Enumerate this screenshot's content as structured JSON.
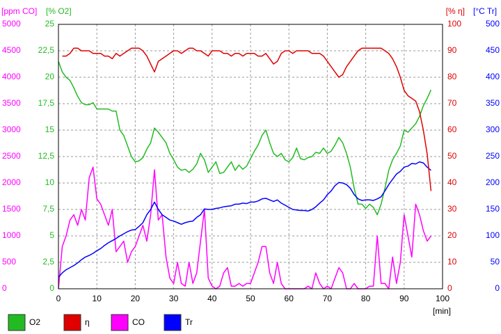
{
  "chart_data": {
    "type": "line",
    "xlabel": "[min]",
    "ylabel": "[ppm CO]",
    "y2label": "[% O2]",
    "y3label": "[% η]",
    "y4label": "[°C Tr]",
    "grid": true,
    "legend": "bottom",
    "xlim": [
      0,
      100
    ],
    "xticks": [
      0,
      10,
      20,
      30,
      40,
      50,
      60,
      70,
      80,
      90,
      100
    ],
    "ylim": [
      0,
      5000
    ],
    "yticks": [
      0,
      500,
      1000,
      1500,
      2000,
      2500,
      3000,
      3500,
      4000,
      4500,
      5000
    ],
    "y2lim": [
      0,
      25
    ],
    "y2ticks": [
      0,
      {
        "value": 2.5,
        "label": "2,5"
      },
      5,
      {
        "value": 7.5,
        "label": "7,5"
      },
      10,
      {
        "value": 12.5,
        "label": "12,5"
      },
      15,
      {
        "value": 17.5,
        "label": "17,5"
      },
      20,
      {
        "value": 22.5,
        "label": "22,5"
      },
      25
    ],
    "y3lim": [
      0,
      100
    ],
    "y3ticks": [
      0,
      10,
      20,
      30,
      40,
      50,
      60,
      70,
      80,
      90,
      100
    ],
    "y4lim": [
      0,
      500
    ],
    "y4ticks": [
      0,
      50,
      100,
      150,
      200,
      250,
      300,
      350,
      400,
      450,
      500
    ],
    "x": [
      0,
      1,
      2,
      3,
      4,
      5,
      6,
      7,
      8,
      9,
      10,
      11,
      12,
      13,
      14,
      15,
      16,
      17,
      18,
      19,
      20,
      21,
      22,
      23,
      24,
      25,
      26,
      27,
      28,
      29,
      30,
      31,
      32,
      33,
      34,
      35,
      36,
      37,
      38,
      39,
      40,
      41,
      42,
      43,
      44,
      45,
      46,
      47,
      48,
      49,
      50,
      51,
      52,
      53,
      54,
      55,
      56,
      57,
      58,
      59,
      60,
      61,
      62,
      63,
      64,
      65,
      66,
      67,
      68,
      69,
      70,
      71,
      72,
      73,
      74,
      75,
      76,
      77,
      78,
      79,
      80,
      81,
      82,
      83,
      84,
      85,
      86,
      87,
      88,
      89,
      90,
      91,
      92,
      93,
      94,
      95,
      96,
      97
    ],
    "series": [
      {
        "name": "O2",
        "color": "#22bb22",
        "axis": "y2",
        "values": [
          21.5,
          20.5,
          20,
          19.7,
          19,
          18.2,
          17.6,
          17.4,
          17.4,
          17.6,
          17,
          17,
          17,
          17,
          16.8,
          16.8,
          15,
          14.5,
          13.5,
          12.5,
          12,
          12.1,
          12.4,
          13.2,
          13.8,
          15.2,
          14.8,
          14.3,
          13.8,
          12.8,
          12.2,
          11.5,
          11.2,
          11.3,
          11,
          11.3,
          11.8,
          12.8,
          12.2,
          11,
          11.5,
          12,
          10.9,
          11,
          11.5,
          12,
          11.2,
          11.7,
          11.3,
          11.6,
          12.3,
          13,
          13.6,
          14.5,
          15,
          13.8,
          12.8,
          12.5,
          12.8,
          12.2,
          12,
          12.4,
          13.3,
          12.3,
          12.2,
          12.4,
          12.5,
          12.9,
          12.8,
          13.3,
          12.8,
          13,
          13.6,
          14.3,
          13.8,
          12.8,
          11.5,
          9.5,
          8,
          8,
          7.6,
          8,
          7.7,
          7,
          8,
          9.5,
          11.2,
          12.2,
          12.8,
          13.5,
          15,
          14.8,
          15.2,
          15.6,
          16.3,
          17.3,
          18,
          18.8
        ]
      },
      {
        "name": "η",
        "color": "#e00000",
        "axis": "y3",
        "values": [
          null,
          88,
          88,
          89,
          91,
          91,
          90,
          90,
          90,
          89,
          89,
          89,
          88,
          88,
          87,
          89,
          88,
          89,
          90,
          91,
          91,
          91,
          90,
          88,
          85,
          82,
          86,
          87,
          88,
          89,
          90,
          90,
          89,
          90,
          91,
          91,
          90,
          90,
          89,
          88,
          90,
          90,
          90,
          89,
          89,
          88,
          89,
          89,
          88,
          89,
          89,
          89,
          88,
          88,
          89,
          87,
          85,
          86,
          89,
          90,
          90,
          89,
          90,
          90,
          90,
          90,
          89,
          89,
          89,
          88,
          86,
          84,
          82,
          80,
          81,
          84,
          86,
          88,
          90,
          91,
          91,
          91,
          91,
          91,
          91,
          90,
          89,
          87,
          84,
          80,
          75,
          73,
          72,
          71,
          67,
          60,
          51,
          37
        ]
      },
      {
        "name": "CO",
        "color": "#ff00ff",
        "axis": "y",
        "values": [
          0,
          800,
          1000,
          1300,
          1400,
          1200,
          1500,
          1300,
          2100,
          2300,
          1700,
          1600,
          1400,
          1200,
          1500,
          700,
          800,
          900,
          500,
          700,
          800,
          1000,
          1200,
          900,
          1400,
          2250,
          1300,
          1400,
          600,
          200,
          100,
          500,
          100,
          50,
          500,
          100,
          300,
          900,
          1500,
          200,
          50,
          0,
          50,
          300,
          400,
          50,
          50,
          100,
          50,
          100,
          100,
          300,
          500,
          800,
          800,
          300,
          100,
          500,
          100,
          0,
          0,
          0,
          0,
          0,
          0,
          50,
          0,
          300,
          100,
          0,
          50,
          0,
          200,
          400,
          300,
          0,
          0,
          100,
          0,
          0,
          0,
          50,
          50,
          1000,
          100,
          100,
          0,
          600,
          100,
          500,
          1400,
          1000,
          600,
          1600,
          1400,
          1100,
          900,
          1000
        ]
      },
      {
        "name": "Tr",
        "color": "#0000ff",
        "axis": "y4",
        "values": [
          22,
          30,
          36,
          40,
          44,
          49,
          55,
          60,
          63,
          67,
          72,
          76,
          82,
          87,
          91,
          95,
          100,
          104,
          108,
          111,
          112,
          118,
          125,
          140,
          150,
          164,
          150,
          140,
          135,
          130,
          128,
          125,
          122,
          125,
          127,
          128,
          135,
          140,
          151,
          150,
          150,
          152,
          153,
          155,
          156,
          157,
          160,
          160,
          162,
          161,
          164,
          164,
          166,
          170,
          171,
          168,
          165,
          168,
          162,
          158,
          154,
          150,
          149,
          148,
          148,
          147,
          150,
          155,
          162,
          168,
          178,
          185,
          195,
          201,
          200,
          197,
          190,
          178,
          170,
          167,
          168,
          168,
          167,
          170,
          174,
          185,
          197,
          207,
          217,
          222,
          230,
          232,
          237,
          236,
          240,
          238,
          230,
          224
        ]
      }
    ]
  }
}
